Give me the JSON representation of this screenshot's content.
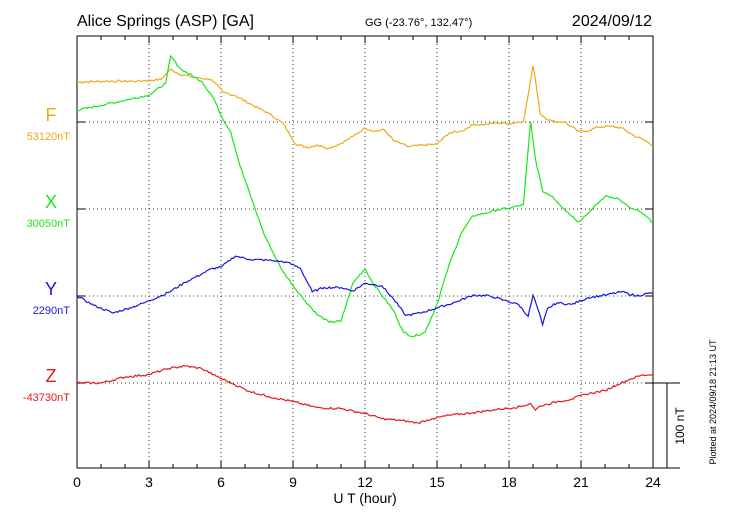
{
  "header": {
    "station": "Alice Springs (ASP)  [GA]",
    "coords": "GG (-23.76°, 132.47°)",
    "date": "2024/09/12"
  },
  "footer": {
    "plotted": "Plotted at 2024/09/18 21:13 UT"
  },
  "chart_data": {
    "type": "line",
    "title": "Alice Springs (ASP)  [GA]",
    "xlabel": "U T (hour)",
    "ylabel": "",
    "xlim": [
      0,
      24
    ],
    "xticks": [
      "0",
      "3",
      "6",
      "9",
      "12",
      "15",
      "18",
      "21",
      "24"
    ],
    "scale_bar": "100 nT",
    "grid": true,
    "series": [
      {
        "name": "F",
        "baseline_label": "53120nT",
        "baseline": 53120,
        "color": "#f0a818",
        "x": [
          0,
          1.2,
          2.5,
          3.5,
          3.9,
          4.3,
          5.0,
          5.6,
          6.1,
          6.6,
          7.3,
          8.0,
          8.6,
          9.1,
          9.6,
          10.0,
          10.5,
          11.0,
          11.5,
          12.0,
          12.4,
          12.8,
          13.2,
          13.8,
          14.5,
          15.0,
          15.5,
          16.0,
          16.5,
          17.0,
          17.5,
          18.0,
          18.6,
          18.85,
          19.0,
          19.1,
          19.3,
          19.5,
          19.8,
          20.3,
          20.9,
          21.2,
          21.7,
          22.2,
          22.7,
          23.2,
          23.7,
          24.0
        ],
        "values": [
          53167,
          53168,
          53168,
          53170,
          53182,
          53176,
          53172,
          53170,
          53155,
          53151,
          53140,
          53130,
          53118,
          53094,
          53090,
          53093,
          53089,
          53095,
          53103,
          53113,
          53109,
          53111,
          53098,
          53091,
          53093,
          53094,
          53107,
          53109,
          53117,
          53117,
          53119,
          53118,
          53121,
          53160,
          53186,
          53170,
          53130,
          53125,
          53121,
          53120,
          53109,
          53109,
          53114,
          53115,
          53113,
          53104,
          53098,
          53092
        ]
      },
      {
        "name": "X",
        "baseline_label": "30050nT",
        "baseline": 30050,
        "color": "#18e818",
        "x": [
          0,
          1.0,
          2.0,
          3.0,
          3.7,
          3.9,
          4.3,
          5.2,
          5.7,
          6.0,
          6.4,
          6.8,
          7.3,
          7.8,
          8.5,
          9.0,
          9.5,
          10.0,
          10.5,
          11.0,
          11.5,
          12.0,
          12.3,
          12.8,
          13.2,
          13.6,
          14.0,
          14.5,
          15.0,
          15.5,
          16.0,
          16.5,
          17.0,
          17.5,
          18.0,
          18.6,
          18.9,
          19.1,
          19.4,
          19.8,
          20.3,
          20.9,
          21.4,
          22.0,
          22.5,
          23.0,
          23.5,
          24.0
        ],
        "values": [
          30166,
          30172,
          30178,
          30184,
          30198,
          30230,
          30215,
          30200,
          30180,
          30160,
          30141,
          30100,
          30060,
          30020,
          29980,
          29960,
          29942,
          29926,
          29917,
          29918,
          29963,
          29980,
          29964,
          29945,
          29930,
          29905,
          29900,
          29905,
          29938,
          29984,
          30021,
          30042,
          30045,
          30049,
          30051,
          30055,
          30153,
          30109,
          30071,
          30065,
          30050,
          30035,
          30048,
          30065,
          30063,
          30052,
          30046,
          30034
        ]
      },
      {
        "name": "Y",
        "baseline_label": "2290nT",
        "baseline": 2290,
        "color": "#1818d8",
        "x": [
          0,
          0.7,
          1.5,
          2.2,
          2.8,
          3.8,
          4.5,
          5.2,
          5.6,
          6.0,
          6.6,
          7.2,
          8.0,
          8.7,
          9.3,
          9.8,
          10.3,
          11.0,
          11.5,
          12.0,
          12.7,
          13.2,
          13.7,
          14.3,
          15.0,
          15.8,
          16.5,
          17.2,
          17.8,
          18.4,
          18.8,
          19.0,
          19.2,
          19.4,
          19.6,
          20.0,
          20.6,
          21.3,
          22.0,
          22.7,
          23.3,
          23.8,
          24.0
        ],
        "values": [
          2290,
          2279,
          2270,
          2276,
          2282,
          2294,
          2306,
          2316,
          2322,
          2324,
          2337,
          2333,
          2332,
          2330,
          2323,
          2295,
          2300,
          2300,
          2296,
          2305,
          2302,
          2286,
          2267,
          2270,
          2276,
          2283,
          2291,
          2290,
          2285,
          2280,
          2266,
          2291,
          2275,
          2256,
          2275,
          2282,
          2280,
          2288,
          2291,
          2295,
          2290,
          2293,
          2294
        ]
      },
      {
        "name": "Z",
        "baseline_label": "-43730nT",
        "baseline": -43730,
        "color": "#e81818",
        "x": [
          0,
          1.0,
          2.0,
          3.0,
          3.8,
          4.5,
          5.2,
          5.8,
          6.5,
          7.2,
          8.0,
          9.0,
          10.0,
          11.0,
          12.0,
          12.7,
          13.5,
          14.2,
          14.8,
          15.5,
          16.5,
          17.5,
          18.2,
          18.6,
          18.9,
          19.1,
          19.3,
          19.6,
          20.0,
          20.6,
          21.2,
          22.0,
          22.5,
          23.0,
          23.5,
          24.0
        ],
        "values": [
          -43730,
          -43730,
          -43723,
          -43720,
          -43713,
          -43710,
          -43713,
          -43722,
          -43731,
          -43740,
          -43746,
          -43752,
          -43759,
          -43760,
          -43766,
          -43772,
          -43774,
          -43777,
          -43772,
          -43768,
          -43765,
          -43761,
          -43759,
          -43757,
          -43754,
          -43762,
          -43757,
          -43755,
          -43752,
          -43749,
          -43743,
          -43739,
          -43732,
          -43726,
          -43721,
          -43720
        ]
      }
    ]
  }
}
